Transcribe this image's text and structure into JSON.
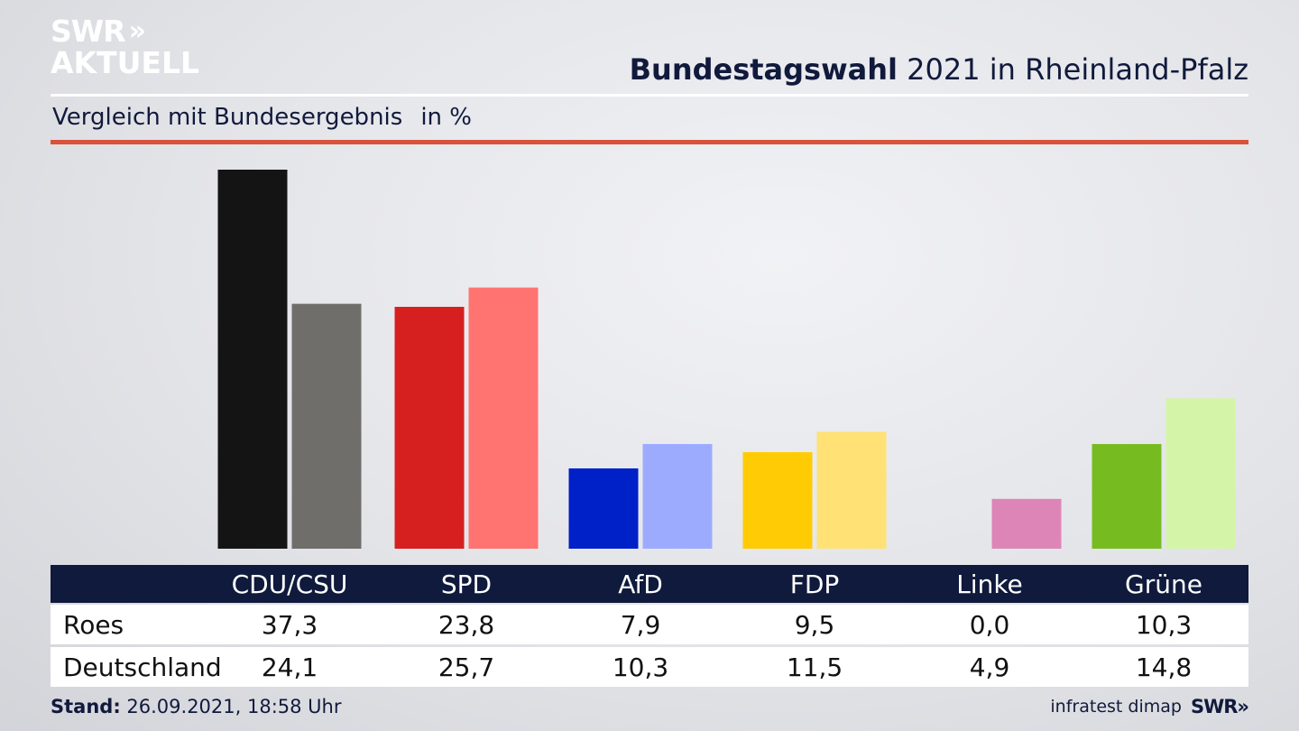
{
  "logo": {
    "line1": "SWR",
    "line2": "AKTUELL",
    "chevrons": "»"
  },
  "header": {
    "title_bold": "Bundestagswahl",
    "title_rest": " 2021 in Rheinland-Pfalz",
    "subtitle": "Vergleich mit Bundesergebnis",
    "unit": "in %"
  },
  "chart_data": {
    "type": "bar",
    "categories": [
      "CDU/CSU",
      "SPD",
      "AfD",
      "FDP",
      "Linke",
      "Grüne"
    ],
    "series": [
      {
        "name": "Roes",
        "values": [
          37.3,
          23.8,
          7.9,
          9.5,
          0.0,
          10.3
        ]
      },
      {
        "name": "Deutschland",
        "values": [
          24.1,
          25.7,
          10.3,
          11.5,
          4.9,
          14.8
        ]
      }
    ],
    "display_values": {
      "Roes": [
        "37,3",
        "23,8",
        "7,9",
        "9,5",
        "0,0",
        "10,3"
      ],
      "Deutschland": [
        "24,1",
        "25,7",
        "10,3",
        "11,5",
        "4,9",
        "14,8"
      ]
    },
    "colors": {
      "Roes": [
        "#141414",
        "#d61f1f",
        "#0020c8",
        "#ffcb05",
        "#de85b8",
        "#76bc21"
      ],
      "Deutschland": [
        "#706e6b",
        "#ff7470",
        "#9dabff",
        "#ffe175",
        "#de85b8",
        "#d4f5a8"
      ]
    },
    "ylim": [
      0,
      37.3
    ],
    "grid": false,
    "legend": "table-below"
  },
  "footer": {
    "stand_label": "Stand:",
    "stand_value": " 26.09.2021, 18:58 Uhr",
    "source": "infratest dimap",
    "brand": "SWR"
  },
  "brand_chevrons": "»"
}
